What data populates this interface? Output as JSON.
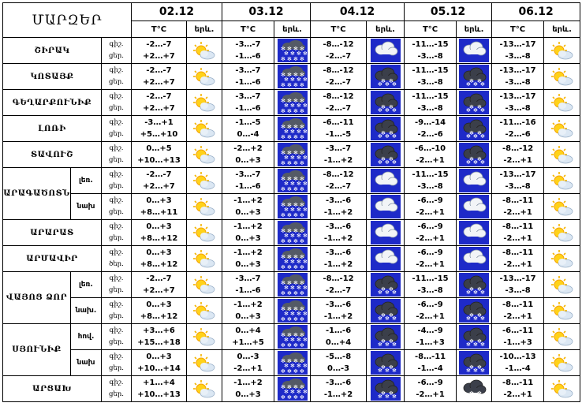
{
  "title": "ՄԱՐԶԵՐ",
  "dates": [
    "02.12",
    "03.12",
    "04.12",
    "05.12",
    "06.12"
  ],
  "temp_header": "T°C",
  "icon_header": "երև.",
  "label_night": "գիշ.",
  "label_day": "ցեր.",
  "label_day_alt": "ծեր.",
  "region_names": {
    "shirak": "ՇԻՐԱԿ",
    "kotayk": "ԿՈՏԱՅՔ",
    "gegharkunik": "ԳԵՂԱՐՔՈՒՆԻՔ",
    "lori": "ԼՈՌԻ",
    "tavush": "ՏԱՎՈՒՇ",
    "aragatsotn": "ԱՐԱԳԱԾՈՏՆ",
    "ararat": "ԱՐԱՐԱՏ",
    "armavir": "ԱՐՄԱՎԻՐ",
    "vayots_dzor": "ՎԱՅՈՑ ՁՈՐ",
    "syunik": "ՍՅՈՒՆԻՔ",
    "artsakh": "ԱՐՑԱԽ"
  },
  "sub_names": {
    "mountain": "լեռ.",
    "foothill": "նախ",
    "foothill_dot": "նախ.",
    "north": "հով."
  },
  "rows": [
    {
      "days": [
        {
          "n": "-2…-7",
          "d": "+2…+7",
          "icon": "sun-cloud"
        },
        {
          "n": "-3…-7",
          "d": "-1…-6",
          "icon": "heavy-snow"
        },
        {
          "n": "-8…-12",
          "d": "-2…-7",
          "icon": "cloudy"
        },
        {
          "n": "-11…-15",
          "d": "-3…-8",
          "icon": "cloudy"
        },
        {
          "n": "-13…-17",
          "d": "-3…-8",
          "icon": "sun-cloud"
        }
      ]
    },
    {
      "days": [
        {
          "n": "-2…-7",
          "d": "+2…+7",
          "icon": "sun-cloud"
        },
        {
          "n": "-3…-7",
          "d": "-1…-6",
          "icon": "heavy-snow"
        },
        {
          "n": "-8…-12",
          "d": "-2…-7",
          "icon": "snow"
        },
        {
          "n": "-11…-15",
          "d": "-3…-8",
          "icon": "snow"
        },
        {
          "n": "-13…-17",
          "d": "-3…-8",
          "icon": "sun-cloud"
        }
      ]
    },
    {
      "days": [
        {
          "n": "-2…-7",
          "d": "+2…+7",
          "icon": "sun-cloud"
        },
        {
          "n": "-3…-7",
          "d": "-1…-6",
          "icon": "heavy-snow"
        },
        {
          "n": "-8…-12",
          "d": "-2…-7",
          "icon": "snow"
        },
        {
          "n": "-11…-15",
          "d": "-3…-8",
          "icon": "snow"
        },
        {
          "n": "-13…-17",
          "d": "-3…-8",
          "icon": "sun-cloud"
        }
      ]
    },
    {
      "days": [
        {
          "n": "-3…+1",
          "d": "+5…+10",
          "icon": "sun-cloud"
        },
        {
          "n": "-1…-5",
          "d": "0…-4",
          "icon": "heavy-snow"
        },
        {
          "n": "-6…-11",
          "d": "-1…-5",
          "icon": "snow"
        },
        {
          "n": "-9…-14",
          "d": "-2…-6",
          "icon": "snow"
        },
        {
          "n": "-11…-16",
          "d": "-2…-6",
          "icon": "sun-cloud"
        }
      ]
    },
    {
      "days": [
        {
          "n": "0…+5",
          "d": "+10…+13",
          "icon": "sun-cloud"
        },
        {
          "n": "-2…+2",
          "d": "0…+3",
          "icon": "heavy-snow"
        },
        {
          "n": "-3…-7",
          "d": "-1…+2",
          "icon": "snow"
        },
        {
          "n": "-6…-10",
          "d": "-2…+1",
          "icon": "snow"
        },
        {
          "n": "-8…-12",
          "d": "-2…+1",
          "icon": "sun-cloud"
        }
      ]
    },
    {
      "days": [
        {
          "n": "-2…-7",
          "d": "+2…+7",
          "icon": "sun-cloud"
        },
        {
          "n": "-3…-7",
          "d": "-1…-6",
          "icon": "heavy-snow"
        },
        {
          "n": "-8…-12",
          "d": "-2…-7",
          "icon": "cloudy"
        },
        {
          "n": "-11…-15",
          "d": "-3…-8",
          "icon": "cloudy"
        },
        {
          "n": "-13…-17",
          "d": "-3…-8",
          "icon": "sun-cloud"
        }
      ]
    },
    {
      "days": [
        {
          "n": "0…+3",
          "d": "+8…+11",
          "icon": "sun-cloud"
        },
        {
          "n": "-1…+2",
          "d": "0…+3",
          "icon": "heavy-snow"
        },
        {
          "n": "-3…-6",
          "d": "-1…+2",
          "icon": "cloudy"
        },
        {
          "n": "-6…-9",
          "d": "-2…+1",
          "icon": "cloudy"
        },
        {
          "n": "-8…-11",
          "d": "-2…+1",
          "icon": "sun-cloud"
        }
      ]
    },
    {
      "days": [
        {
          "n": "0…+3",
          "d": "+8…+12",
          "icon": "sun-cloud"
        },
        {
          "n": "-1…+2",
          "d": "0…+3",
          "icon": "heavy-snow"
        },
        {
          "n": "-3…-6",
          "d": "-1…+2",
          "icon": "cloudy"
        },
        {
          "n": "-6…-9",
          "d": "-2…+1",
          "icon": "cloudy"
        },
        {
          "n": "-8…-11",
          "d": "-2…+1",
          "icon": "sun-cloud"
        }
      ]
    },
    {
      "days": [
        {
          "n": "0…+3",
          "d": "+8…+12",
          "icon": "sun-cloud"
        },
        {
          "n": "-1…+2",
          "d": "0…+3",
          "icon": "heavy-snow"
        },
        {
          "n": "-3…-6",
          "d": "-1…+2",
          "icon": "cloudy"
        },
        {
          "n": "-6…-9",
          "d": "-2…+1",
          "icon": "cloudy"
        },
        {
          "n": "-8…-11",
          "d": "-2…+1",
          "icon": "sun-cloud"
        }
      ]
    },
    {
      "days": [
        {
          "n": "-2…-7",
          "d": "+2…+7",
          "icon": "sun-cloud"
        },
        {
          "n": "-3…-7",
          "d": "-1…-6",
          "icon": "heavy-snow"
        },
        {
          "n": "-8…-12",
          "d": "-2…-7",
          "icon": "snow"
        },
        {
          "n": "-11…-15",
          "d": "-3…-8",
          "icon": "snow"
        },
        {
          "n": "-13…-17",
          "d": "-3…-8",
          "icon": "sun-cloud"
        }
      ]
    },
    {
      "days": [
        {
          "n": "0…+3",
          "d": "+8…+12",
          "icon": "sun-cloud"
        },
        {
          "n": "-1…+2",
          "d": "0…+3",
          "icon": "heavy-snow"
        },
        {
          "n": "-3…-6",
          "d": "-1…+2",
          "icon": "snow"
        },
        {
          "n": "-6…-9",
          "d": "-2…+1",
          "icon": "snow"
        },
        {
          "n": "-8…-11",
          "d": "-2…+1",
          "icon": "sun-cloud"
        }
      ]
    },
    {
      "days": [
        {
          "n": "+3…+6",
          "d": "+15…+18",
          "icon": "sun-cloud"
        },
        {
          "n": "0…+4",
          "d": "+1…+5",
          "icon": "heavy-snow"
        },
        {
          "n": "-1…-6",
          "d": "0…+4",
          "icon": "snow"
        },
        {
          "n": "-4…-9",
          "d": "-1…+3",
          "icon": "snow"
        },
        {
          "n": "-6…-11",
          "d": "-1…+3",
          "icon": "sun-cloud"
        }
      ]
    },
    {
      "days": [
        {
          "n": "0…+3",
          "d": "+10…+14",
          "icon": "sun-cloud"
        },
        {
          "n": "0…-3",
          "d": "-2…+1",
          "icon": "heavy-snow"
        },
        {
          "n": "-5…-8",
          "d": "0…-3",
          "icon": "snow"
        },
        {
          "n": "-8…-11",
          "d": "-1…-4",
          "icon": "snow"
        },
        {
          "n": "-10…-13",
          "d": "-1…-4",
          "icon": "sun-cloud"
        }
      ]
    },
    {
      "days": [
        {
          "n": "+1…+4",
          "d": "+10…+13",
          "icon": "sun-cloud"
        },
        {
          "n": "-1…+2",
          "d": "0…+3",
          "icon": "heavy-snow"
        },
        {
          "n": "-3…-6",
          "d": "-1…+2",
          "icon": "snow"
        },
        {
          "n": "-6…-9",
          "d": "-2…+1",
          "icon": "snow-plain"
        },
        {
          "n": "-8…-11",
          "d": "-2…+1",
          "icon": "sun-cloud"
        }
      ]
    }
  ]
}
